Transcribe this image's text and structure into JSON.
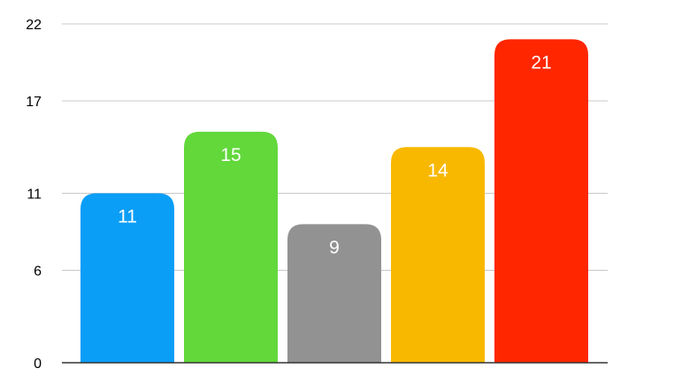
{
  "chart_data": {
    "type": "bar",
    "categories": [
      "",
      "",
      "",
      "",
      ""
    ],
    "values": [
      11,
      15,
      9,
      14,
      21
    ],
    "colors": [
      "#0a9ef7",
      "#62d83b",
      "#929292",
      "#f8b800",
      "#ff2600"
    ],
    "data_labels": [
      "11",
      "15",
      "9",
      "14",
      "21"
    ],
    "yticks": [
      0,
      6,
      11,
      17,
      22
    ],
    "ytick_labels": [
      "0",
      "6",
      "11",
      "17",
      "22"
    ],
    "ylim": [
      0,
      22
    ],
    "grid": true,
    "title": "",
    "xlabel": "",
    "ylabel": ""
  }
}
